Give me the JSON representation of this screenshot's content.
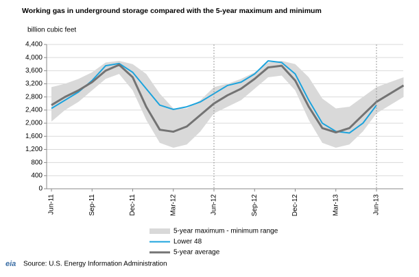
{
  "chart_data": {
    "type": "line",
    "title": "Working gas in underground storage compared with the 5-year maximum and minimum",
    "y_axis_label": "billion cubic feet",
    "source": "Source:  U.S. Energy Information Administration",
    "logo": "eia",
    "categories": [
      "Jun-11",
      null,
      null,
      "Sep-11",
      null,
      null,
      "Dec-11",
      null,
      null,
      "Mar-12",
      null,
      null,
      "Jun-12",
      null,
      null,
      "Sep-12",
      null,
      null,
      "Dec-12",
      null,
      null,
      "Mar-13",
      null,
      null,
      "Jun-13",
      null,
      null
    ],
    "series": [
      {
        "name": "5-year maximum - minimum range",
        "color": "#d9d9d9",
        "max": [
          3100,
          3200,
          3350,
          3550,
          3850,
          3900,
          3800,
          3500,
          2900,
          2450,
          2450,
          2700,
          3100,
          3200,
          3350,
          3550,
          3850,
          3900,
          3800,
          3400,
          2750,
          2450,
          2500,
          2800,
          3100,
          3250,
          3400
        ],
        "min": [
          2050,
          2400,
          2650,
          3000,
          3350,
          3500,
          3000,
          2100,
          1400,
          1250,
          1350,
          1750,
          2300,
          2500,
          2700,
          3050,
          3400,
          3450,
          3000,
          2100,
          1400,
          1250,
          1350,
          1750,
          2300,
          2550,
          2800
        ]
      },
      {
        "name": "Lower 48",
        "color": "#1ba3dd",
        "values": [
          2450,
          2700,
          2950,
          3300,
          3750,
          3820,
          3550,
          3050,
          2550,
          2420,
          2500,
          2650,
          2900,
          3150,
          3250,
          3500,
          3900,
          3850,
          3500,
          2700,
          2000,
          1750,
          1700,
          2000,
          2550,
          null,
          null
        ]
      },
      {
        "name": "5-year average",
        "color": "#737373",
        "values": [
          2550,
          2800,
          3000,
          3250,
          3600,
          3780,
          3400,
          2500,
          1800,
          1740,
          1900,
          2250,
          2600,
          2850,
          3050,
          3350,
          3700,
          3750,
          3300,
          2500,
          1850,
          1720,
          1850,
          2250,
          2650,
          2900,
          3150
        ]
      }
    ],
    "ylim": [
      0,
      4400
    ],
    "yticks": [
      0,
      {
        "value": 400,
        "label": "400"
      },
      {
        "value": 800,
        "label": "800"
      },
      {
        "value": 1200,
        "label": "1,200"
      },
      {
        "value": 1600,
        "label": "1,600"
      },
      {
        "value": 2000,
        "label": "2,000"
      },
      {
        "value": 2400,
        "label": "2,400"
      },
      {
        "value": 2800,
        "label": "2,800"
      },
      {
        "value": 3200,
        "label": "3,200"
      },
      {
        "value": 3600,
        "label": "3,600"
      },
      {
        "value": 4000,
        "label": "4,000"
      },
      {
        "value": 4400,
        "label": "4,400"
      }
    ],
    "grid": true
  }
}
